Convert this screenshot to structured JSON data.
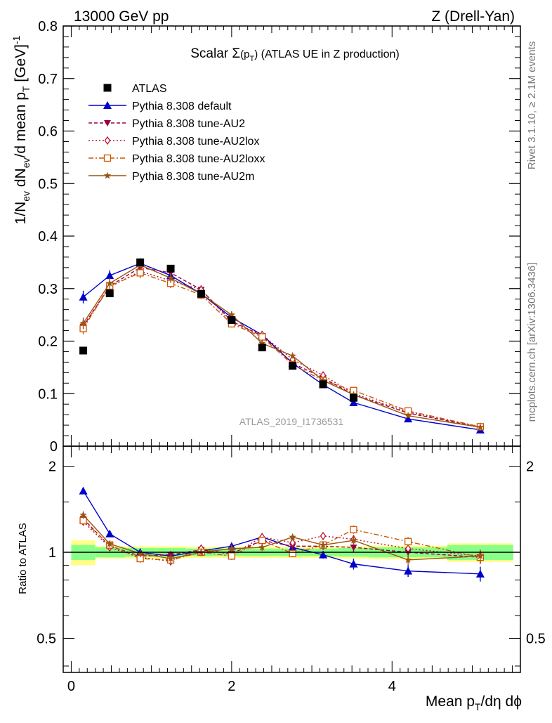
{
  "header": {
    "left": "13000 GeV pp",
    "right": "Z (Drell-Yan)"
  },
  "side_labels": {
    "rivet": "Rivet 3.1.10, ≥ 2.1M events",
    "mcplots": "mcplots.cern.ch [arXiv:1306.3436]"
  },
  "watermark": "ATLAS_2019_I1736531",
  "colors": {
    "atlas": "#000000",
    "default": "#0000cc",
    "au2": "#990044",
    "au2lox": "#bb1133",
    "au2loxx": "#cc5500",
    "au2m": "#995511",
    "band_inner": "#88ff88",
    "band_outer": "#ffff88"
  },
  "chart_data": [
    {
      "type": "scatter",
      "title_parts": {
        "pre": "Scalar ",
        "sigma": "Σ",
        "p": "(p",
        "sub": "T",
        "close": ")",
        "post": " (ATLAS UE in Z production)"
      },
      "ylabel_parts": [
        "1/N",
        "ev",
        " dN",
        "ev",
        "/d mean p",
        "T",
        " [GeV]",
        "-1"
      ],
      "ylim": [
        0,
        0.8
      ],
      "yticks": [
        {
          "v": 0,
          "label": "0"
        },
        {
          "v": 0.1,
          "label": "0.1"
        },
        {
          "v": 0.2,
          "label": "0.2"
        },
        {
          "v": 0.3,
          "label": "0.3"
        },
        {
          "v": 0.4,
          "label": "0.4"
        },
        {
          "v": 0.5,
          "label": "0.5"
        },
        {
          "v": 0.6,
          "label": "0.6"
        },
        {
          "v": 0.7,
          "label": "0.7"
        },
        {
          "v": 0.8,
          "label": "0.8"
        }
      ],
      "xlim": [
        -0.1,
        5.6
      ],
      "legend_position": "top-left",
      "x": [
        0.15,
        0.48,
        0.86,
        1.24,
        1.62,
        2.0,
        2.38,
        2.76,
        3.14,
        3.52,
        4.2,
        5.1
      ],
      "series": [
        {
          "name": "ATLAS",
          "key": "atlas",
          "marker": "square",
          "values": [
            0.182,
            0.291,
            0.35,
            0.338,
            0.29,
            0.24,
            0.188,
            0.153,
            0.118,
            0.092,
            null,
            null
          ]
        },
        {
          "name": "Pythia 8.308 default",
          "key": "default",
          "marker": "triangle-up",
          "dash": "",
          "values": [
            0.284,
            0.325,
            0.348,
            0.325,
            0.29,
            0.245,
            0.212,
            0.158,
            0.117,
            0.083,
            0.052,
            0.031
          ],
          "err": [
            0.012,
            0.01,
            0.01,
            0.009,
            0.008,
            0.007,
            0.006,
            0.005,
            0.004,
            0.004,
            0.003,
            0.002
          ]
        },
        {
          "name": "Pythia 8.308 tune-AU2",
          "key": "au2",
          "marker": "triangle-down",
          "dash": "5,3",
          "values": [
            0.228,
            0.305,
            0.34,
            0.33,
            0.298,
            0.238,
            0.21,
            0.158,
            0.13,
            0.098,
            0.063,
            0.036
          ],
          "err": [
            0.011,
            0.01,
            0.01,
            0.009,
            0.008,
            0.007,
            0.006,
            0.005,
            0.005,
            0.004,
            0.003,
            0.002
          ]
        },
        {
          "name": "Pythia 8.308 tune-AU2lox",
          "key": "au2lox",
          "marker": "diamond-open",
          "dash": "2,3",
          "values": [
            0.23,
            0.303,
            0.333,
            0.315,
            0.298,
            0.235,
            0.212,
            0.165,
            0.135,
            0.1,
            0.065,
            0.037
          ],
          "err": [
            0.011,
            0.01,
            0.01,
            0.009,
            0.008,
            0.007,
            0.006,
            0.005,
            0.005,
            0.004,
            0.003,
            0.002
          ]
        },
        {
          "name": "Pythia 8.308 tune-AU2loxx",
          "key": "au2loxx",
          "marker": "square-open",
          "dash": "7,3,2,3",
          "values": [
            0.224,
            0.305,
            0.33,
            0.31,
            0.288,
            0.233,
            0.208,
            0.155,
            0.125,
            0.106,
            0.067,
            0.037
          ],
          "err": [
            0.011,
            0.01,
            0.01,
            0.009,
            0.008,
            0.007,
            0.006,
            0.005,
            0.005,
            0.004,
            0.003,
            0.002
          ]
        },
        {
          "name": "Pythia 8.308 tune-AU2m",
          "key": "au2m",
          "marker": "star",
          "dash": "",
          "values": [
            0.234,
            0.31,
            0.345,
            0.32,
            0.29,
            0.25,
            0.196,
            0.172,
            0.125,
            0.098,
            0.058,
            0.036
          ],
          "err": [
            0.011,
            0.01,
            0.01,
            0.009,
            0.008,
            0.007,
            0.006,
            0.005,
            0.005,
            0.004,
            0.003,
            0.002
          ]
        }
      ]
    },
    {
      "type": "scatter",
      "ylabel": "Ratio to ATLAS",
      "ylim": [
        0.38,
        2.35
      ],
      "yticks_left": [
        {
          "v": 0.5,
          "label": "0.5"
        },
        {
          "v": 1,
          "label": "1"
        },
        {
          "v": 2,
          "label": "2"
        }
      ],
      "yticks_right": [
        {
          "v": 0.5,
          "label": "0.5"
        },
        {
          "v": 2,
          "label": "2"
        }
      ],
      "xlim": [
        -0.1,
        5.6
      ],
      "xticks": [
        {
          "v": 0,
          "label": "0"
        },
        {
          "v": 2,
          "label": "2"
        },
        {
          "v": 4,
          "label": "4"
        }
      ],
      "xlabel_parts": {
        "pre": "Mean p",
        "sub": "T",
        "post": "/dη dϕ"
      },
      "x": [
        0.15,
        0.48,
        0.86,
        1.24,
        1.62,
        2.0,
        2.38,
        2.76,
        3.14,
        3.52,
        4.2,
        5.1
      ],
      "bands": [
        {
          "x0": 0.0,
          "x1": 0.3,
          "inner": 0.06,
          "outer": 0.1
        },
        {
          "x0": 0.3,
          "x1": 0.67,
          "inner": 0.04,
          "outer": 0.05
        },
        {
          "x0": 0.67,
          "x1": 1.05,
          "inner": 0.035,
          "outer": 0.05
        },
        {
          "x0": 1.05,
          "x1": 1.43,
          "inner": 0.035,
          "outer": 0.05
        },
        {
          "x0": 1.43,
          "x1": 1.81,
          "inner": 0.03,
          "outer": 0.045
        },
        {
          "x0": 1.81,
          "x1": 2.19,
          "inner": 0.03,
          "outer": 0.045
        },
        {
          "x0": 2.19,
          "x1": 2.57,
          "inner": 0.03,
          "outer": 0.045
        },
        {
          "x0": 2.57,
          "x1": 2.95,
          "inner": 0.03,
          "outer": 0.045
        },
        {
          "x0": 2.95,
          "x1": 3.33,
          "inner": 0.03,
          "outer": 0.045
        },
        {
          "x0": 3.33,
          "x1": 3.71,
          "inner": 0.035,
          "outer": 0.05
        },
        {
          "x0": 3.71,
          "x1": 4.69,
          "inner": 0.04,
          "outer": 0.055
        },
        {
          "x0": 4.69,
          "x1": 5.51,
          "inner": 0.06,
          "outer": 0.075
        }
      ],
      "series": [
        {
          "key": "default",
          "marker": "triangle-up",
          "dash": "",
          "values": [
            1.64,
            1.16,
            1.0,
            0.97,
            1.01,
            1.05,
            1.13,
            1.04,
            0.98,
            0.91,
            0.86,
            0.84
          ],
          "err": [
            0.04,
            0.03,
            0.03,
            0.03,
            0.03,
            0.03,
            0.03,
            0.03,
            0.03,
            0.04,
            0.04,
            0.05
          ]
        },
        {
          "key": "au2",
          "marker": "triangle-down",
          "dash": "5,3",
          "values": [
            1.31,
            1.05,
            0.97,
            0.98,
            1.02,
            0.99,
            1.1,
            1.05,
            1.05,
            1.04,
            1.0,
            0.96
          ],
          "err": [
            0.04,
            0.03,
            0.03,
            0.03,
            0.03,
            0.03,
            0.03,
            0.03,
            0.03,
            0.04,
            0.04,
            0.05
          ]
        },
        {
          "key": "au2lox",
          "marker": "diamond-open",
          "dash": "2,3",
          "values": [
            1.28,
            1.04,
            0.96,
            0.93,
            1.03,
            0.98,
            1.13,
            1.08,
            1.14,
            1.11,
            1.03,
            0.97
          ],
          "err": [
            0.04,
            0.03,
            0.03,
            0.03,
            0.03,
            0.03,
            0.03,
            0.03,
            0.03,
            0.04,
            0.04,
            0.05
          ]
        },
        {
          "key": "au2loxx",
          "marker": "square-open",
          "dash": "7,3,2,3",
          "values": [
            1.29,
            1.06,
            0.95,
            0.94,
            1.0,
            0.97,
            1.1,
            0.99,
            1.06,
            1.2,
            1.09,
            0.96
          ],
          "err": [
            0.04,
            0.03,
            0.03,
            0.03,
            0.03,
            0.03,
            0.03,
            0.03,
            0.03,
            0.04,
            0.04,
            0.05
          ]
        },
        {
          "key": "au2m",
          "marker": "star",
          "dash": "",
          "values": [
            1.35,
            1.07,
            0.99,
            0.95,
            1.0,
            1.03,
            1.04,
            1.13,
            1.06,
            1.1,
            0.94,
            0.97
          ],
          "err": [
            0.04,
            0.03,
            0.03,
            0.03,
            0.03,
            0.03,
            0.03,
            0.03,
            0.03,
            0.04,
            0.04,
            0.05
          ]
        }
      ]
    }
  ]
}
